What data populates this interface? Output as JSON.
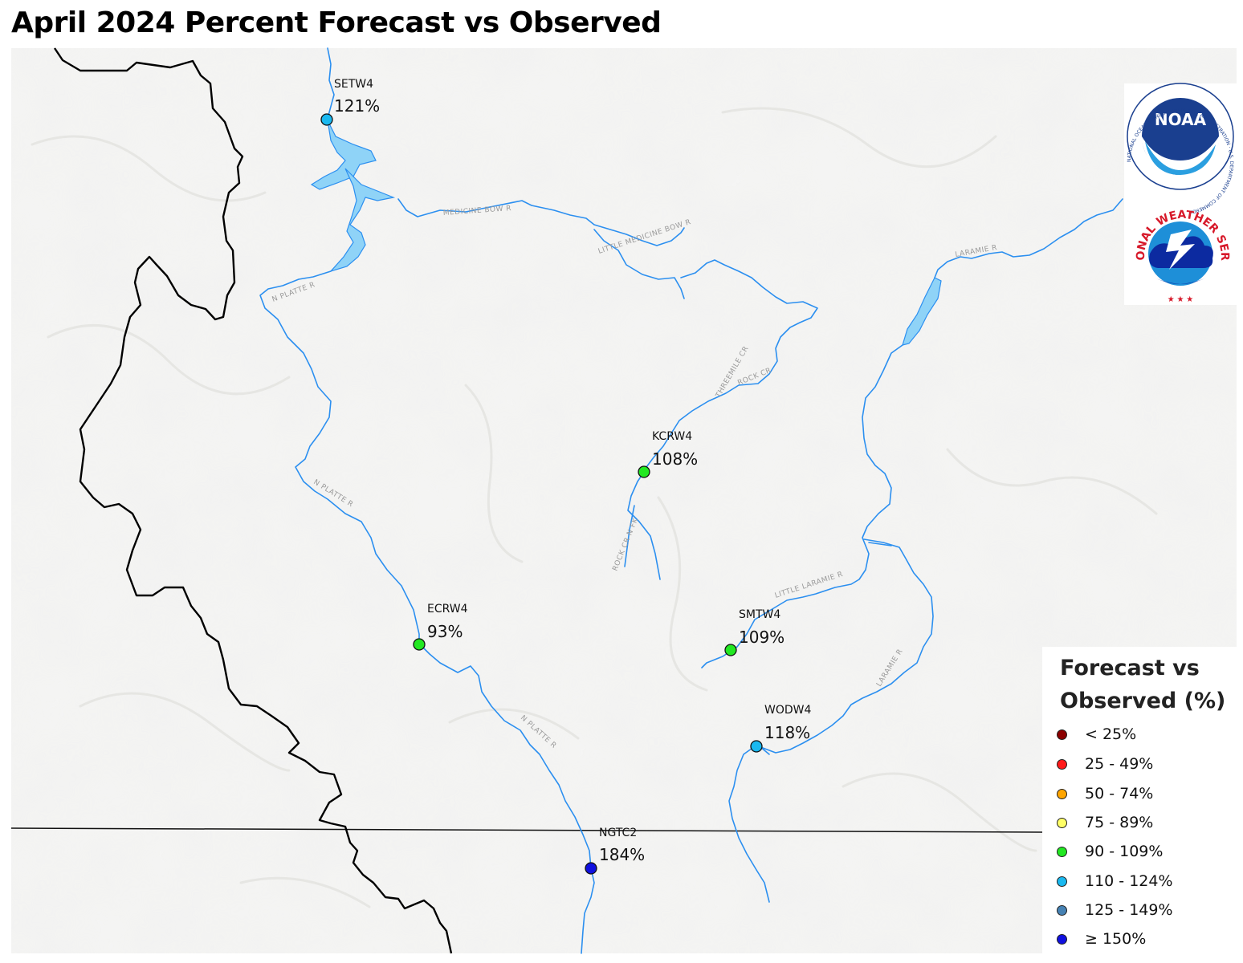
{
  "title": "April 2024 Percent Forecast vs Observed",
  "stations": [
    {
      "id": "SETW4",
      "pct": "121%",
      "color": "#1ab9f0"
    },
    {
      "id": "KCRW4",
      "pct": "108%",
      "color": "#22e822"
    },
    {
      "id": "ECRW4",
      "pct": "93%",
      "color": "#22e822"
    },
    {
      "id": "SMTW4",
      "pct": "109%",
      "color": "#22e822"
    },
    {
      "id": "WODW4",
      "pct": "118%",
      "color": "#1ab9f0"
    },
    {
      "id": "NGTC2",
      "pct": "184%",
      "color": "#1010e0"
    }
  ],
  "rivers": {
    "medicine_bow": "MEDICINE BOW R",
    "little_medicine_bow": "LITTLE MEDICINE BOW R",
    "n_platte_upper": "N PLATTE R",
    "n_platte_mid": "N PLATTE R",
    "n_platte_lower": "N PLATTE R",
    "threemile": "THREEMILE CR",
    "rock_cr": "ROCK CR",
    "rock_cr_n_fk": "ROCK CR N FK",
    "little_laramie": "LITTLE LARAMIE R",
    "laramie_upper": "LARAMIE R",
    "laramie_lower": "LARAMIE R"
  },
  "legend": {
    "title_line1": "Forecast vs",
    "title_line2": "Observed (%)",
    "items": [
      {
        "label": "< 25%",
        "color": "#8b0000"
      },
      {
        "label": "25 - 49%",
        "color": "#ff1a1a"
      },
      {
        "label": "50 - 74%",
        "color": "#ffa500"
      },
      {
        "label": "75 - 89%",
        "color": "#ffff66"
      },
      {
        "label": "90 - 109%",
        "color": "#22e822"
      },
      {
        "label": "110 - 124%",
        "color": "#1ab9f0"
      },
      {
        "label": "125 - 149%",
        "color": "#4682b4"
      },
      {
        "label": "≥ 150%",
        "color": "#1010e0"
      }
    ]
  },
  "logos": {
    "noaa_wordmark": "NOAA",
    "noaa_ring_text": "NATIONAL OCEANIC AND ATMOSPHERIC ADMINISTRATION · U.S. DEPARTMENT OF COMMERCE",
    "nws_ring_text": "NATIONAL WEATHER SERVICE"
  },
  "colors": {
    "river": "#2b8ff0",
    "reservoir": "#8fd3f7",
    "boundary": "#000000",
    "terrain": "#eeeeec"
  }
}
